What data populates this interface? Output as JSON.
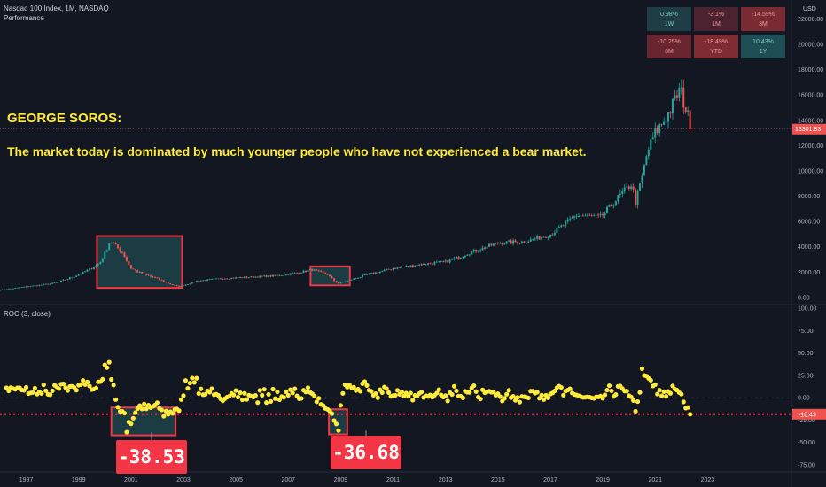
{
  "header": {
    "instrument": "Nasdaq 100 Index, 1M, NASDAQ",
    "indicator_panel": "Performance"
  },
  "performance": [
    {
      "value": "0.98%",
      "period": "1W",
      "color": "#1e3d45"
    },
    {
      "value": "-3.1%",
      "period": "1M",
      "color": "#4a2230"
    },
    {
      "value": "-14.59%",
      "period": "3M",
      "color": "#7a2a32"
    },
    {
      "value": "-10.25%",
      "period": "6M",
      "color": "#6a2630"
    },
    {
      "value": "-18.49%",
      "period": "YTD",
      "color": "#7e2b33"
    },
    {
      "value": "10.43%",
      "period": "1Y",
      "color": "#1f4f55"
    }
  ],
  "annotation": {
    "title": "GEORGE SOROS:",
    "quote": "The market today is dominated by much younger people who have not experienced a bear market."
  },
  "callouts": [
    {
      "value": "-38.53"
    },
    {
      "value": "-36.68"
    }
  ],
  "colors": {
    "up": "#26a69a",
    "down": "#ef5350",
    "roc_dots": "#ffeb3b",
    "highlight_box": "#f23645",
    "box_fill": "#1f4a4e"
  },
  "chart_data": [
    {
      "type": "candlestick",
      "title": "Nasdaq 100 Index, 1M, NASDAQ",
      "y_axis_label": "USD",
      "y_ticks": [
        0,
        2000,
        4000,
        6000,
        8000,
        10000,
        12000,
        14000,
        16000,
        18000,
        20000,
        22000
      ],
      "y_tick_labels": [
        "0.00",
        "2000.00",
        "4000.00",
        "6000.00",
        "8000.00",
        "10000.00",
        "12000.00",
        "14000.00",
        "16000.00",
        "18000.00",
        "20000.00",
        "22000.00"
      ],
      "ylim": [
        -500,
        23500
      ],
      "last_price": 13301.83,
      "last_price_label": "13301.83",
      "x_ticks": [
        1997,
        1999,
        2001,
        2003,
        2005,
        2007,
        2009,
        2011,
        2013,
        2015,
        2017,
        2019,
        2021,
        2023
      ],
      "anchors": [
        [
          1996.0,
          600
        ],
        [
          1997.0,
          850
        ],
        [
          1998.0,
          1100
        ],
        [
          1999.0,
          1800
        ],
        [
          1999.8,
          2700
        ],
        [
          2000.2,
          4500
        ],
        [
          2000.7,
          3500
        ],
        [
          2001.0,
          2300
        ],
        [
          2001.5,
          1800
        ],
        [
          2002.0,
          1500
        ],
        [
          2002.8,
          850
        ],
        [
          2003.5,
          1300
        ],
        [
          2004.5,
          1500
        ],
        [
          2005.5,
          1600
        ],
        [
          2006.5,
          1700
        ],
        [
          2007.5,
          2000
        ],
        [
          2007.9,
          2200
        ],
        [
          2008.5,
          1800
        ],
        [
          2008.9,
          1100
        ],
        [
          2009.2,
          1300
        ],
        [
          2010.0,
          1800
        ],
        [
          2011.0,
          2300
        ],
        [
          2012.0,
          2600
        ],
        [
          2013.0,
          2800
        ],
        [
          2014.0,
          3600
        ],
        [
          2015.0,
          4300
        ],
        [
          2016.0,
          4400
        ],
        [
          2017.0,
          5000
        ],
        [
          2018.0,
          6500
        ],
        [
          2018.9,
          6300
        ],
        [
          2019.5,
          7700
        ],
        [
          2020.1,
          9000
        ],
        [
          2020.25,
          7500
        ],
        [
          2020.7,
          11500
        ],
        [
          2021.0,
          13000
        ],
        [
          2021.5,
          14500
        ],
        [
          2021.95,
          16500
        ],
        [
          2022.15,
          15000
        ],
        [
          2022.4,
          13300
        ]
      ]
    },
    {
      "type": "scatter",
      "title": "ROC (3, close)",
      "y_ticks": [
        -75,
        -50,
        -25,
        0,
        25,
        50,
        75,
        100
      ],
      "y_tick_labels": [
        "-75.00",
        "-50.00",
        "-25.00",
        "0.00",
        "25.00",
        "50.00",
        "75.00",
        "100.00"
      ],
      "ylim": [
        -82,
        103
      ],
      "last_value": -18.49,
      "last_value_label": "-18.49",
      "x_ticks": [
        1997,
        1999,
        2001,
        2003,
        2005,
        2007,
        2009,
        2011,
        2013,
        2015,
        2017,
        2019,
        2021,
        2023
      ],
      "highlighted_lows": [
        {
          "x": 2000.8,
          "y": -38.53
        },
        {
          "x": 2008.9,
          "y": -36.68
        }
      ]
    }
  ]
}
